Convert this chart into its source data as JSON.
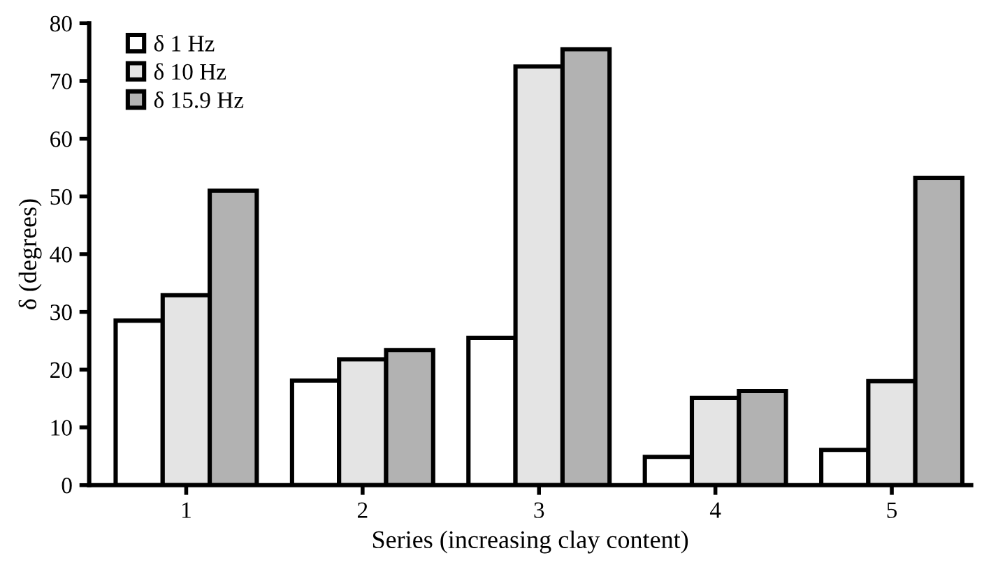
{
  "chart_data": {
    "type": "bar",
    "xlabel": "Series (increasing clay content)",
    "ylabel": "δ (degrees)",
    "categories": [
      "1",
      "2",
      "3",
      "4",
      "5"
    ],
    "series": [
      {
        "name": "δ 1 Hz",
        "color": "#ffffff",
        "values": [
          28.5,
          18.1,
          25.5,
          4.9,
          6.1
        ]
      },
      {
        "name": "δ 10 Hz",
        "color": "#e4e4e4",
        "values": [
          32.9,
          21.8,
          72.5,
          15.1,
          18.0
        ]
      },
      {
        "name": "δ 15.9 Hz",
        "color": "#b2b2b2",
        "values": [
          51.0,
          23.4,
          75.5,
          16.3,
          53.2
        ]
      }
    ],
    "ylim": [
      0,
      80
    ],
    "yticks": [
      0,
      10,
      20,
      30,
      40,
      50,
      60,
      70,
      80
    ],
    "grid": false,
    "legend": "top left"
  }
}
